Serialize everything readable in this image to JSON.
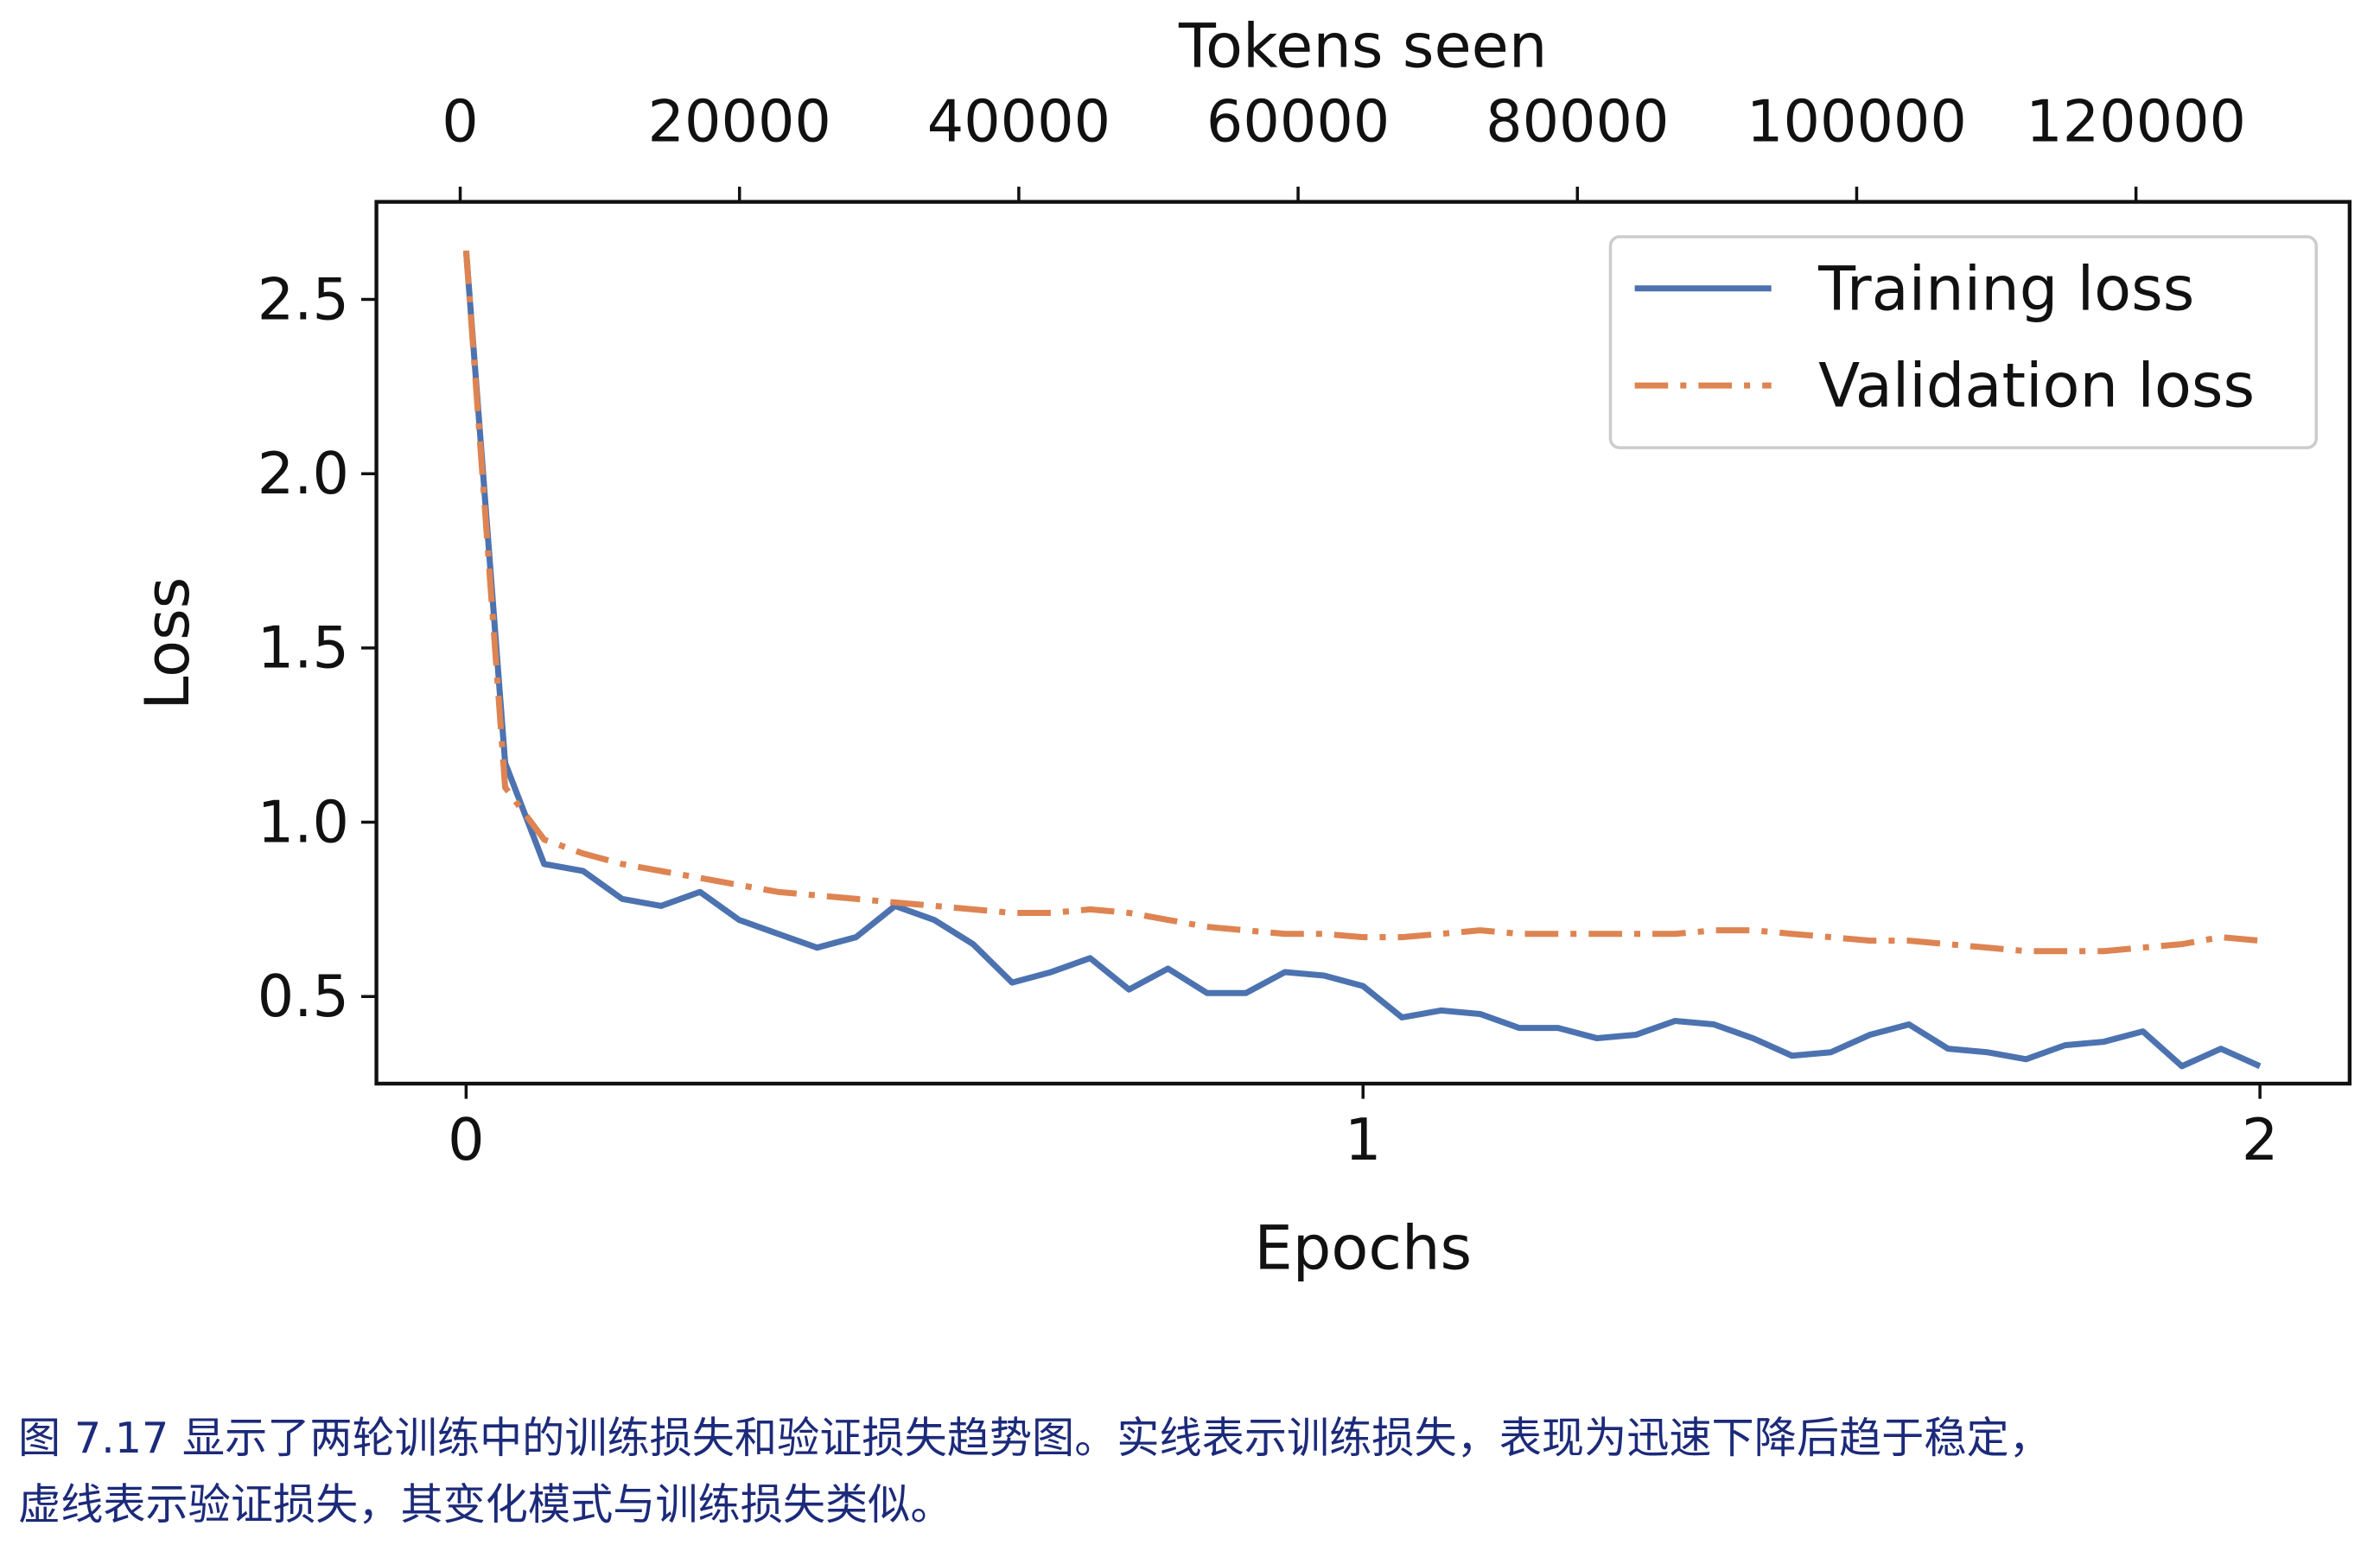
{
  "chart_data": {
    "type": "line",
    "xlabel": "Epochs",
    "ylabel": "Loss",
    "top_xlabel": "Tokens seen",
    "xlim": [
      -0.1,
      2.1
    ],
    "ylim": [
      0.25,
      2.78
    ],
    "top_xlim": [
      -6000,
      135300
    ],
    "x_ticks": [
      0,
      1,
      2
    ],
    "y_ticks": [
      0.5,
      1.0,
      1.5,
      2.0,
      2.5
    ],
    "y_tick_labels": [
      "0.5",
      "1.0",
      "1.5",
      "2.0",
      "2.5"
    ],
    "top_x_ticks": [
      0,
      20000,
      40000,
      60000,
      80000,
      100000,
      120000
    ],
    "grid": false,
    "legend_position": "top-right",
    "x_points": {
      "start": 0,
      "end": 2,
      "count": 47
    },
    "series": [
      {
        "name": "Training loss",
        "color": "#4c72b0",
        "style": "solid",
        "values": [
          2.64,
          1.17,
          0.88,
          0.86,
          0.78,
          0.76,
          0.8,
          0.72,
          0.68,
          0.64,
          0.67,
          0.76,
          0.72,
          0.65,
          0.54,
          0.57,
          0.61,
          0.52,
          0.58,
          0.51,
          0.51,
          0.57,
          0.56,
          0.53,
          0.44,
          0.46,
          0.45,
          0.41,
          0.41,
          0.38,
          0.39,
          0.43,
          0.42,
          0.38,
          0.33,
          0.34,
          0.39,
          0.42,
          0.35,
          0.34,
          0.32,
          0.36,
          0.37,
          0.4,
          0.3,
          0.35,
          0.3
        ]
      },
      {
        "name": "Validation loss",
        "color": "#dd8452",
        "style": "dashdot",
        "values": [
          2.64,
          1.1,
          0.95,
          0.91,
          0.88,
          0.86,
          0.84,
          0.82,
          0.8,
          0.79,
          0.78,
          0.77,
          0.76,
          0.75,
          0.74,
          0.74,
          0.75,
          0.74,
          0.72,
          0.7,
          0.69,
          0.68,
          0.68,
          0.67,
          0.67,
          0.68,
          0.69,
          0.68,
          0.68,
          0.68,
          0.68,
          0.68,
          0.69,
          0.69,
          0.68,
          0.67,
          0.66,
          0.66,
          0.65,
          0.64,
          0.63,
          0.63,
          0.63,
          0.64,
          0.65,
          0.67,
          0.66
        ]
      }
    ]
  },
  "caption": {
    "line1": "图 7.17 显示了两轮训练中的训练损失和验证损失趋势图。实线表示训练损失，表现为迅速下降后趋于稳定，",
    "line2": "虚线表示验证损失，其变化模式与训练损失类似。"
  }
}
